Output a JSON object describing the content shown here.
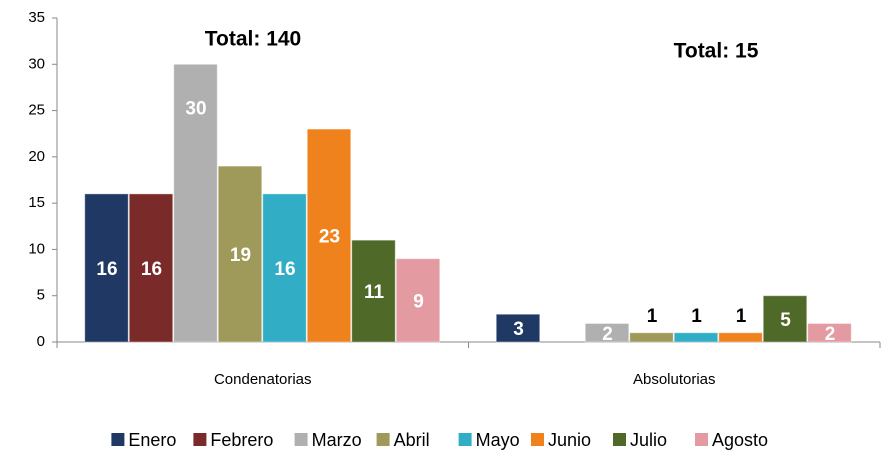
{
  "chart_data": {
    "type": "bar",
    "annotations": [
      "Total:  140",
      "Total: 15"
    ],
    "categories": [
      "Condenatorias",
      "Absolutorias"
    ],
    "series": [
      {
        "name": "Enero",
        "color": "#1f3864",
        "values": [
          16,
          3
        ]
      },
      {
        "name": "Febrero",
        "color": "#7b2a2a",
        "values": [
          16,
          null
        ]
      },
      {
        "name": "Marzo",
        "color": "#b0b0b0",
        "values": [
          30,
          2
        ]
      },
      {
        "name": "Abril",
        "color": "#a09a5a",
        "values": [
          19,
          1
        ]
      },
      {
        "name": "Mayo",
        "color": "#31aec6",
        "values": [
          16,
          1
        ]
      },
      {
        "name": "Junio",
        "color": "#f0821e",
        "values": [
          23,
          1
        ]
      },
      {
        "name": "Julio",
        "color": "#4f6a28",
        "values": [
          11,
          5
        ]
      },
      {
        "name": "Agosto",
        "color": "#e39aa0",
        "values": [
          9,
          2
        ]
      }
    ],
    "ylim": [
      0,
      35
    ],
    "yticks": [
      0,
      5,
      10,
      15,
      20,
      25,
      30,
      35
    ],
    "grid": false,
    "legend": "bottom"
  }
}
